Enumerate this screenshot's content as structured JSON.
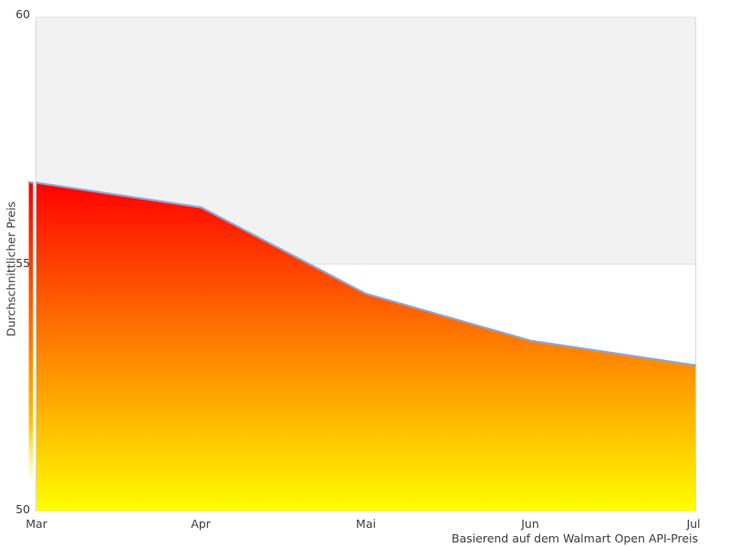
{
  "chart_data": {
    "type": "area",
    "title": "",
    "categories": [
      "Mar",
      "Apr",
      "Mai",
      "Jun",
      "Jul"
    ],
    "values": [
      56.65,
      56.15,
      54.4,
      53.45,
      52.95
    ],
    "series_name": "Durchschnittlicher Preis",
    "xlabel": "",
    "ylabel": "Durchschnittlicher Preis",
    "caption": "Basierend auf dem Walmart Open API-Preis",
    "ylim": [
      50,
      60
    ],
    "ytick_values": [
      60,
      55,
      50
    ],
    "ytick_labels": [
      "60",
      "55",
      "50"
    ],
    "grid": "horizontal-bands",
    "legend": "none",
    "colors": {
      "line": "#8aa6da",
      "gradient_top": "#ff0000",
      "gradient_mid": "#ff8000",
      "gradient_bottom": "#ffff00",
      "band_fill": "#f2f2f2",
      "grid_line": "#e0e0e0",
      "plot_border": "#d9d9d9",
      "text": "#3d3d3d",
      "background": "#ffffff"
    }
  }
}
